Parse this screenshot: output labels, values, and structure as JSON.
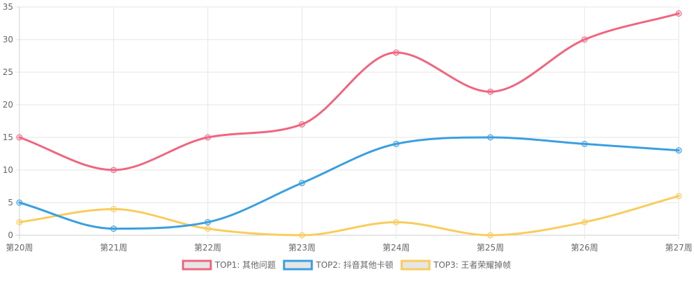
{
  "chart_data": {
    "type": "line",
    "categories": [
      "第20周",
      "第21周",
      "第22周",
      "第23周",
      "第24周",
      "第25周",
      "第26周",
      "第27周"
    ],
    "ylim": [
      0,
      35
    ],
    "yticks": [
      0,
      5,
      10,
      15,
      20,
      25,
      30,
      35
    ],
    "grid": true,
    "legend_position": "bottom",
    "series": [
      {
        "name": "TOP1: 其他问题",
        "color": "#f0657f",
        "values": [
          15,
          10,
          15,
          17,
          28,
          22,
          30,
          34
        ]
      },
      {
        "name": "TOP2: 抖音其他卡顿",
        "color": "#3a9fe0",
        "values": [
          5,
          1,
          2,
          8,
          14,
          15,
          14,
          13
        ]
      },
      {
        "name": "TOP3: 王者荣耀掉帧",
        "color": "#f9cc5c",
        "values": [
          2,
          4,
          1,
          0,
          2,
          0,
          2,
          6
        ]
      }
    ]
  }
}
